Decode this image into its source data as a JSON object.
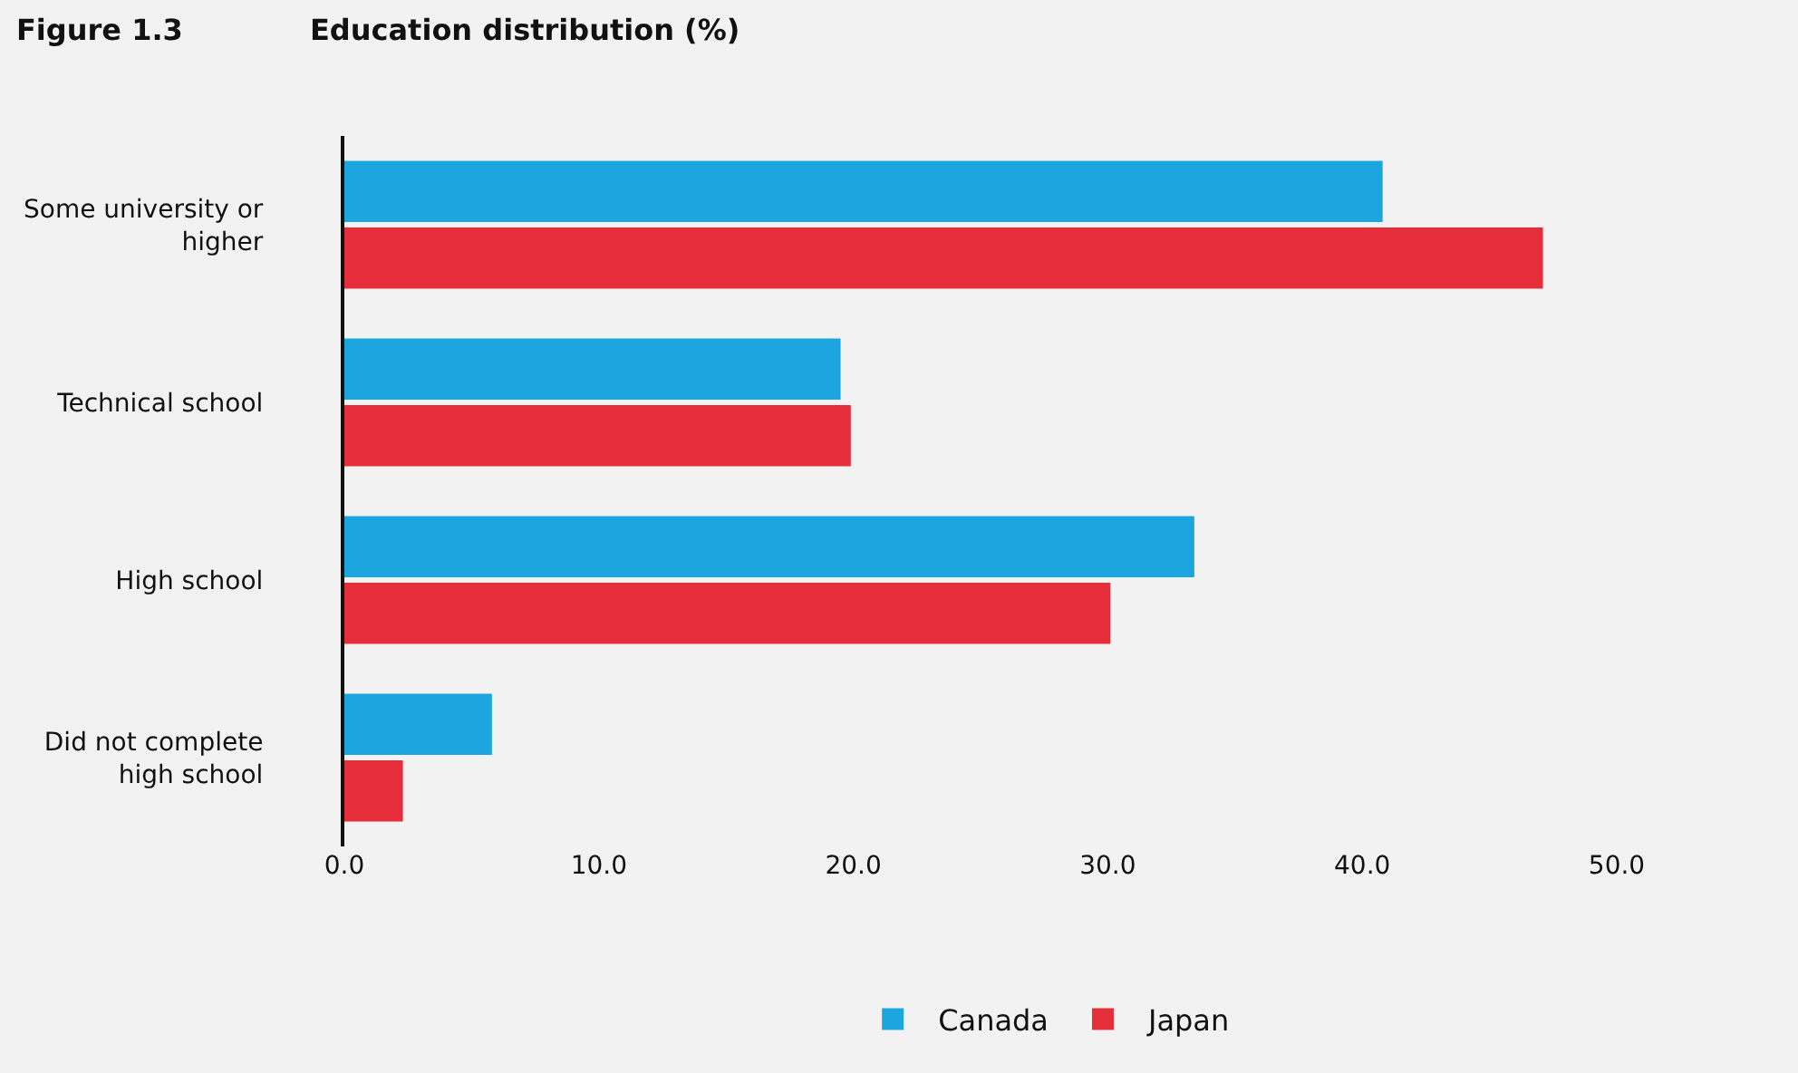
{
  "chart_data": {
    "type": "bar",
    "orientation": "horizontal",
    "title": "Figure 1.3",
    "subtitle": "Education distribution (%)",
    "categories": [
      "Some university or higher",
      "Technical school",
      "High school",
      "Did not complete high school"
    ],
    "series": [
      {
        "name": "Canada",
        "color": "#1ca5de",
        "values": [
          40.8,
          19.5,
          33.4,
          5.8
        ]
      },
      {
        "name": "Japan",
        "color": "#e62e3b",
        "values": [
          47.1,
          19.9,
          30.1,
          2.3
        ]
      }
    ],
    "xlim": [
      0,
      50
    ],
    "xticks": [
      {
        "value": 0,
        "label": "0.0"
      },
      {
        "value": 10,
        "label": "10.0"
      },
      {
        "value": 20,
        "label": "20.0"
      },
      {
        "value": 30,
        "label": "30.0"
      },
      {
        "value": 40,
        "label": "40.0"
      },
      {
        "value": 50,
        "label": "50.0"
      }
    ],
    "grid": false,
    "legend": "bottom"
  }
}
